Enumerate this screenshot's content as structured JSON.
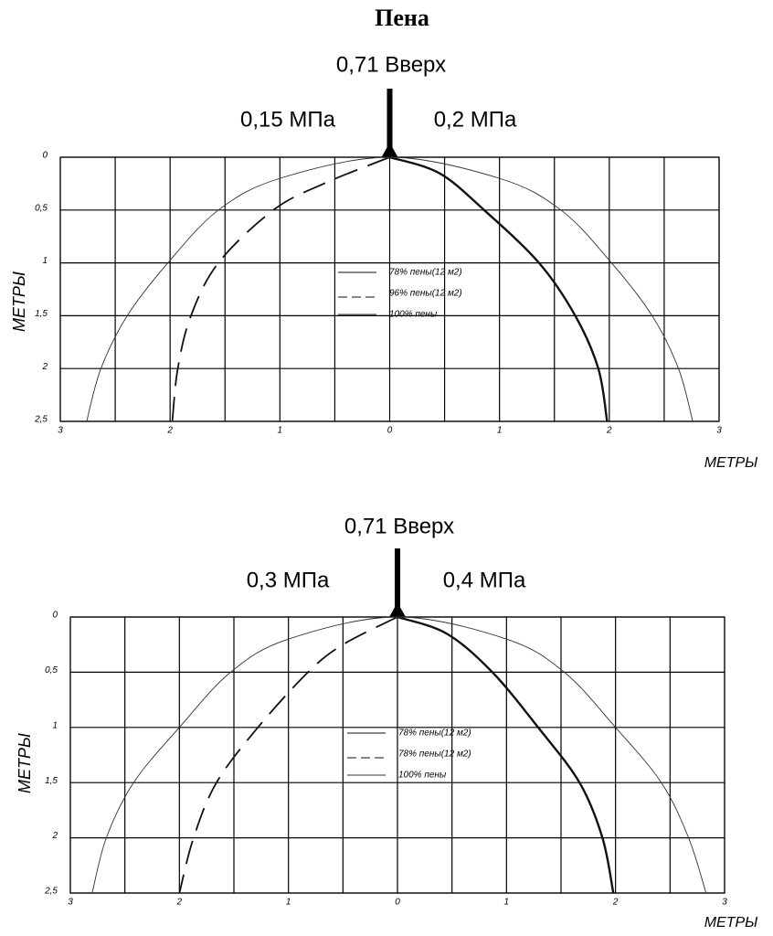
{
  "chart_data": [
    {
      "type": "line",
      "title": "Пена",
      "annotations": [
        "0,71 Вверх",
        "0,15 МПа",
        "0,2 МПа"
      ],
      "xlabel": "МЕТРЫ",
      "ylabel": "МЕТРЫ",
      "xlim": [
        -3,
        3
      ],
      "ylim": [
        0,
        2.5
      ],
      "y_inverted": true,
      "grid": true,
      "xticks": [
        {
          "value": -3,
          "label": "3"
        },
        {
          "value": -2,
          "label": "2"
        },
        {
          "value": -1,
          "label": "1"
        },
        0,
        1,
        2,
        3
      ],
      "xgridlines": [
        -3,
        -2.5,
        -2,
        -1.5,
        -1,
        -0.5,
        0,
        0.5,
        1,
        1.5,
        2,
        2.5,
        3
      ],
      "yticks": [
        0,
        {
          "value": 0.5,
          "label": "0,5"
        },
        1,
        {
          "value": 1.5,
          "label": "1,5"
        },
        2,
        {
          "value": 2.5,
          "label": "2,5"
        }
      ],
      "series": [
        {
          "name": "78% пены(12 м2)",
          "color": "#111111",
          "linestyle": "thick",
          "x": [
            0,
            0.45,
            0.86,
            1.36,
            1.69,
            1.9,
            1.98
          ],
          "values": [
            0,
            0.15,
            0.5,
            1,
            1.5,
            2,
            2.5
          ]
        },
        {
          "name": "96% пены(12 м2)",
          "color": "#111111",
          "linestyle": "dashed",
          "x": [
            0,
            -0.6,
            -1.06,
            -1.56,
            -1.81,
            -1.93,
            -1.98
          ],
          "values": [
            0,
            0.25,
            0.5,
            1,
            1.5,
            2,
            2.5
          ]
        },
        {
          "name": "100% пены",
          "color": "#333333",
          "linestyle": "thin",
          "x": [
            -2.76,
            -2.63,
            -2.39,
            -2.02,
            -1.56,
            -1.0,
            0,
            1.0,
            1.56,
            2.02,
            2.39,
            2.63,
            2.76
          ],
          "values": [
            2.5,
            2,
            1.5,
            1,
            0.5,
            0.2,
            0,
            0.2,
            0.5,
            1,
            1.5,
            2,
            2.5
          ]
        }
      ]
    },
    {
      "type": "line",
      "annotations": [
        "0,71 Вверх",
        "0,3 МПа",
        "0,4 МПа"
      ],
      "xlabel": "МЕТРЫ",
      "ylabel": "МЕТРЫ",
      "xlim": [
        -3,
        3
      ],
      "ylim": [
        0,
        2.5
      ],
      "y_inverted": true,
      "grid": true,
      "xticks": [
        {
          "value": -3,
          "label": "3"
        },
        {
          "value": -2,
          "label": "2"
        },
        {
          "value": -1,
          "label": "1"
        },
        0,
        1,
        2,
        3
      ],
      "xgridlines": [
        -3,
        -2.5,
        -2,
        -1.5,
        -1,
        -0.5,
        0,
        0.5,
        1,
        1.5,
        2,
        2.5,
        3
      ],
      "yticks": [
        0,
        {
          "value": 0.5,
          "label": "0,5"
        },
        1,
        {
          "value": 1.5,
          "label": "1,5"
        },
        2,
        {
          "value": 2.5,
          "label": "2,5"
        }
      ],
      "series": [
        {
          "name": "78% пены(12 м2)",
          "color": "#111111",
          "linestyle": "thick",
          "x": [
            0,
            0.45,
            0.87,
            1.29,
            1.67,
            1.88,
            1.98
          ],
          "values": [
            0,
            0.15,
            0.5,
            1,
            1.5,
            2,
            2.5
          ]
        },
        {
          "name": "78% пены(12 м2)",
          "color": "#111111",
          "linestyle": "dashed",
          "x": [
            0,
            -0.5,
            -0.82,
            -1.28,
            -1.66,
            -1.87,
            -2.0
          ],
          "values": [
            0,
            0.25,
            0.5,
            1,
            1.5,
            2,
            2.5
          ]
        },
        {
          "name": "100% пены",
          "color": "#333333",
          "linestyle": "thin",
          "x": [
            -2.8,
            -2.67,
            -2.42,
            -2.0,
            -1.53,
            -1.0,
            0,
            1.0,
            1.53,
            2.0,
            2.42,
            2.67,
            2.83
          ],
          "values": [
            2.5,
            2,
            1.5,
            1,
            0.5,
            0.2,
            0,
            0.2,
            0.5,
            1,
            1.5,
            2,
            2.5
          ]
        }
      ]
    }
  ]
}
